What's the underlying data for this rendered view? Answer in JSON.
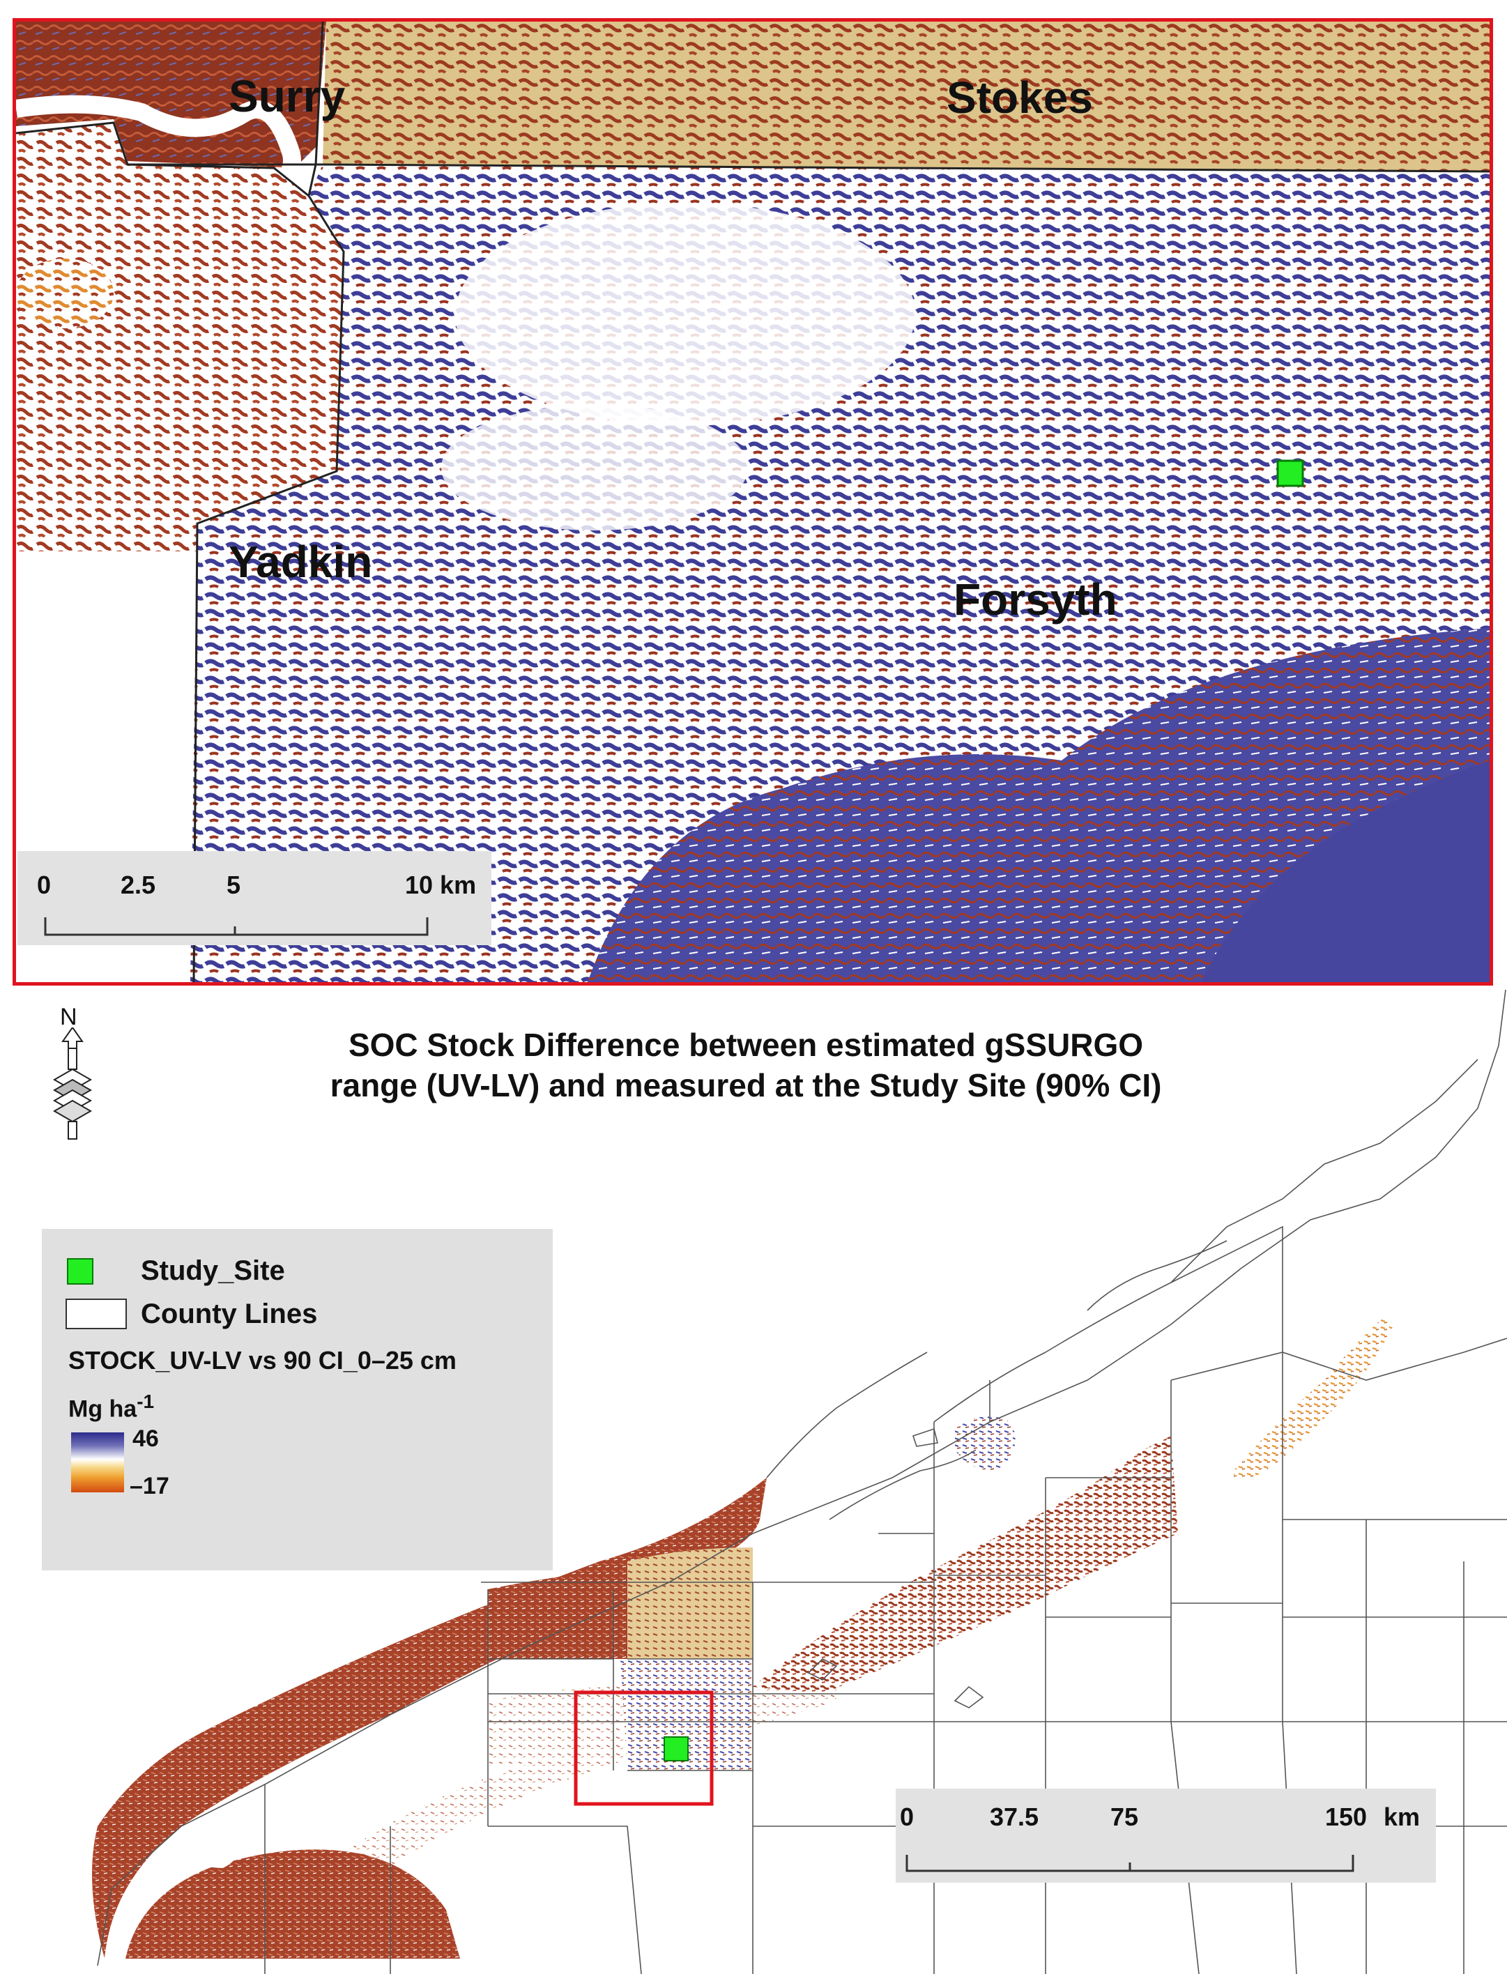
{
  "inset_map": {
    "counties": [
      "Surry",
      "Stokes",
      "Yadkin",
      "Forsyth"
    ],
    "scale_bar": {
      "ticks": [
        "0",
        "2.5",
        "5",
        "10 km"
      ]
    }
  },
  "overview_map": {
    "title_line1": "SOC Stock Difference between estimated gSSURGO",
    "title_line2": "range (UV-LV) and measured at the Study Site (90% CI)",
    "north_arrow_label": "N",
    "scale_bar": {
      "ticks": [
        "0",
        "37.5",
        "75",
        "150",
        "km"
      ]
    }
  },
  "legend": {
    "items": [
      {
        "label": "Study_Site",
        "swatch": "#22ee22"
      },
      {
        "label": "County Lines",
        "swatch": "#ffffff"
      }
    ],
    "layer_name": "STOCK_UV-LV vs 90 CI_0–25 cm",
    "unit": "Mg ha",
    "unit_exp": "-1",
    "ramp_max": "46",
    "ramp_min": "–17"
  },
  "colors": {
    "frame_red": "#e0141e",
    "study_site": "#22ee22",
    "high_blue": "#3a3a96",
    "mid_white": "#ffffff",
    "low_orange": "#f0a030",
    "low_red": "#9c2e14",
    "tan": "#d9b870"
  }
}
